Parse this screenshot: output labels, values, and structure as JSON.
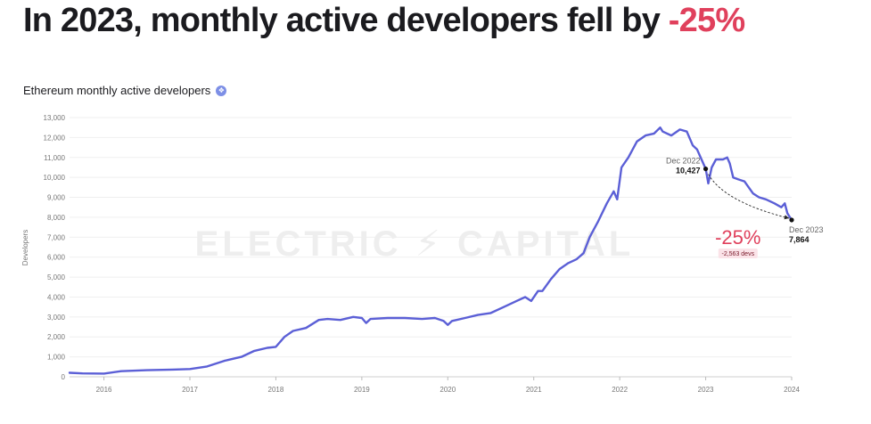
{
  "headline": {
    "prefix": "In 2023, monthly active developers fell by ",
    "highlight": "-25%"
  },
  "chart_title": "Ethereum monthly active developers",
  "colors": {
    "line": "#5b5fd6",
    "headline_red": "#e0405c",
    "badge_bg": "#fbe3e8",
    "watermark": "#eeeeee"
  },
  "watermark": "ELECTRIC ⚡ CAPITAL",
  "chart_data": {
    "type": "line",
    "title": "Ethereum monthly active developers",
    "xlabel": "",
    "ylabel": "Developers",
    "xlim": [
      2015.6,
      2024.0
    ],
    "ylim": [
      0,
      13000
    ],
    "y_ticks": [
      0,
      1000,
      2000,
      3000,
      4000,
      5000,
      6000,
      7000,
      8000,
      9000,
      10000,
      11000,
      12000,
      13000
    ],
    "y_tick_labels": [
      "0",
      "1,000",
      "2,000",
      "3,000",
      "4,000",
      "5,000",
      "6,000",
      "7,000",
      "8,000",
      "9,000",
      "10,000",
      "11,000",
      "12,000",
      "13,000"
    ],
    "x_ticks": [
      2016,
      2017,
      2018,
      2019,
      2020,
      2021,
      2022,
      2023,
      2024
    ],
    "x_tick_labels": [
      "2016",
      "2017",
      "2018",
      "2019",
      "2020",
      "2021",
      "2022",
      "2023",
      "2024"
    ],
    "grid": true,
    "series": [
      {
        "x": [
          2015.6,
          2015.75,
          2016.0,
          2016.2,
          2016.5,
          2016.8,
          2017.0,
          2017.2,
          2017.4,
          2017.6,
          2017.75,
          2017.9,
          2018.0,
          2018.1,
          2018.2,
          2018.35,
          2018.5,
          2018.6,
          2018.75,
          2018.9,
          2019.0,
          2019.05,
          2019.1,
          2019.3,
          2019.5,
          2019.7,
          2019.85,
          2019.95,
          2020.0,
          2020.05,
          2020.2,
          2020.35,
          2020.5,
          2020.65,
          2020.8,
          2020.9,
          2020.97,
          2021.05,
          2021.1,
          2021.2,
          2021.3,
          2021.4,
          2021.5,
          2021.58,
          2021.65,
          2021.75,
          2021.85,
          2021.93,
          2021.97,
          2022.02,
          2022.1,
          2022.2,
          2022.3,
          2022.4,
          2022.47,
          2022.5,
          2022.6,
          2022.7,
          2022.78,
          2022.85,
          2022.9,
          2023.0,
          2023.03,
          2023.07,
          2023.12,
          2023.2,
          2023.25,
          2023.28,
          2023.32,
          2023.38,
          2023.45,
          2023.55,
          2023.62,
          2023.7,
          2023.8,
          2023.88,
          2023.92,
          2023.95,
          2024.0
        ],
        "y": [
          200,
          170,
          160,
          280,
          330,
          360,
          390,
          520,
          800,
          1000,
          1300,
          1450,
          1500,
          2000,
          2300,
          2450,
          2850,
          2900,
          2850,
          3000,
          2950,
          2700,
          2900,
          2950,
          2950,
          2900,
          2950,
          2800,
          2600,
          2800,
          2950,
          3100,
          3200,
          3500,
          3800,
          4000,
          3800,
          4300,
          4300,
          4900,
          5400,
          5700,
          5900,
          6200,
          7000,
          7800,
          8700,
          9300,
          8900,
          10500,
          11000,
          11800,
          12100,
          12200,
          12500,
          12300,
          12100,
          12400,
          12300,
          11600,
          11400,
          10427,
          9700,
          10500,
          10900,
          10900,
          11000,
          10700,
          10000,
          9900,
          9800,
          9200,
          9000,
          8900,
          8700,
          8500,
          8700,
          8200,
          7864
        ]
      }
    ],
    "annotations": {
      "start": {
        "label": "Dec 2022",
        "value_label": "10,427",
        "x": 2023.0,
        "y": 10427
      },
      "end": {
        "label": "Dec 2023",
        "value_label": "7,864",
        "x": 2024.0,
        "y": 7864
      },
      "change": {
        "pct": "-25%",
        "abs": "-2,563 devs"
      }
    }
  }
}
